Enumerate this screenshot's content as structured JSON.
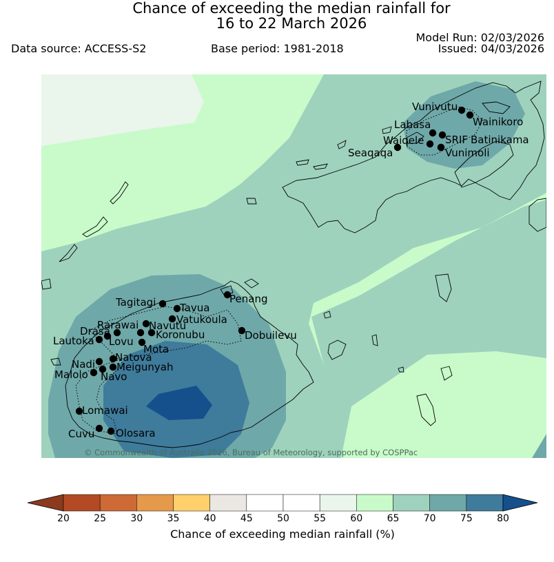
{
  "header": {
    "title_line1": "Chance of exceeding the median rainfall for",
    "title_line2": "16 to 22 March 2026",
    "model_run": "Model Run: 02/03/2026",
    "issued": "Issued: 04/03/2026",
    "data_source": "Data source: ACCESS-S2",
    "base_period": "Base period: 1981-2018"
  },
  "map": {
    "credit": "© Commonwealth of Australia 2026, Bureau of Meteorology, supported by COSPPac",
    "stations": [
      "Vunivutu",
      "Wainikoro",
      "Labasa",
      "SRIF",
      "Waiqele",
      "Batinikama",
      "Seaqaqa",
      "Vunimoli",
      "Tagitagi",
      "Penang",
      "Tavua",
      "Vatukoula",
      "Rarawai",
      "Navutu",
      "Drasa",
      "Koronubu",
      "Dobuilevu",
      "Lautoka",
      "Lovu",
      "Mota",
      "Nadi",
      "Natova",
      "Meigunyah",
      "Malolo",
      "Navo",
      "Lomawai",
      "Cuvu",
      "Olosara"
    ]
  },
  "colorbar": {
    "title": "Chance of exceeding median rainfall (%)",
    "ticks": [
      "20",
      "25",
      "30",
      "35",
      "40",
      "45",
      "50",
      "55",
      "60",
      "65",
      "70",
      "75",
      "80"
    ],
    "colors": [
      "#8b3a1e",
      "#b34a25",
      "#cd6a36",
      "#e5994b",
      "#fecf6b",
      "#ebe7e3",
      "#ffffff",
      "#ffffff",
      "#eaf5ec",
      "#c9fbca",
      "#9ed2bd",
      "#6fa8a9",
      "#3f7b9b",
      "#15508d"
    ]
  }
}
